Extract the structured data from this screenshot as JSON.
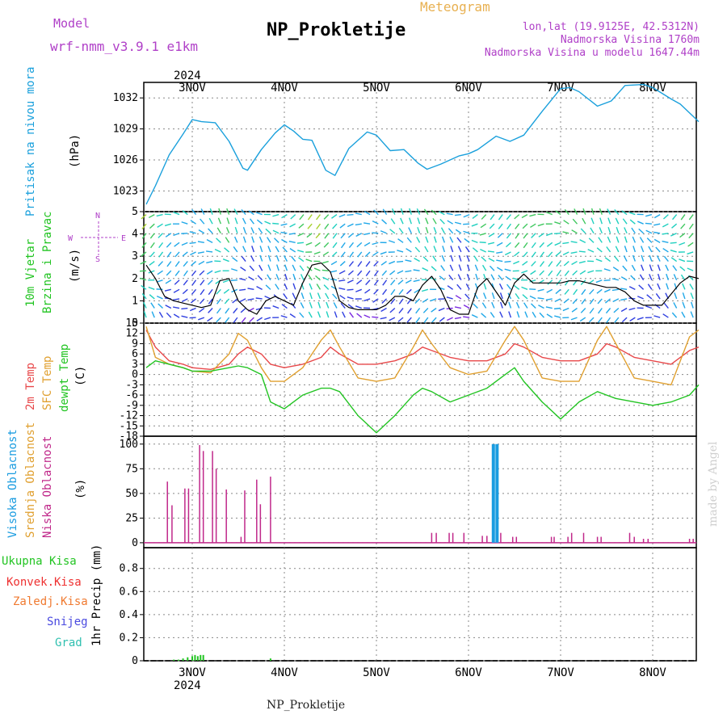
{
  "header": {
    "model_label": "Model",
    "model_name": "wrf-nmm_v3.9.1 e1km",
    "site_title": "NP_Prokletije",
    "meteogram_label": "Meteogram",
    "lonlat": "lon,lat (19.9125E, 42.5312N)",
    "elevation": "Nadmorska Visina 1760m",
    "model_elevation": "Nadmorska Visina u modelu 1647.44m",
    "watermark": "made by Angel",
    "footer": "NP_Prokletije"
  },
  "colors": {
    "pressure": "#1aa0dc",
    "temp2m": "#e8484a",
    "sfc_temp": "#e0a030",
    "dewpt": "#22c422",
    "wind_speed": "#000000",
    "wind_max": "#ee3030",
    "low_cloud": "#c0288a",
    "high_cloud": "#1a9ce0",
    "precip_total": "#22c422",
    "title_purple": "#b040c8",
    "title_gold": "#e8b050"
  },
  "axes": {
    "year_top": "2024",
    "year_bottom": "2024",
    "days": [
      "3NOV",
      "4NOV",
      "5NOV",
      "6NOV",
      "7NOV",
      "8NOV"
    ]
  },
  "panels": {
    "pressure": {
      "label": "Pritisak na nivou mora",
      "unit": "(hPa)",
      "ticks": [
        "1023",
        "1026",
        "1029",
        "1032"
      ]
    },
    "wind": {
      "label1": "10m Vjetar",
      "label2": "Brzina i Pravac",
      "unit": "(m/s)",
      "ticks": [
        "0",
        "1",
        "2",
        "3",
        "4",
        "5"
      ],
      "compass": [
        "N",
        "S",
        "E",
        "W"
      ]
    },
    "temp": {
      "label1": "2m Temp",
      "label2": "SFC Temp",
      "label3": "dewpt Temp",
      "unit": "(C)",
      "ticks": [
        "-18",
        "-15",
        "-12",
        "-9",
        "-6",
        "-3",
        "0",
        "3",
        "6",
        "9",
        "12",
        "15"
      ]
    },
    "cloud": {
      "label1": "Visoka Oblacnost",
      "label2": "Srednja Oblacnost",
      "label3": "Niska Oblacnost",
      "unit": "(%)",
      "ticks": [
        "0",
        "25",
        "50",
        "75",
        "100"
      ]
    },
    "precip": {
      "label1": "Ukupna Kisa",
      "label2": "Konvek.Kisa",
      "label3": "Zaledj.Kisa",
      "label4": "Snijeg",
      "label5": "Grad",
      "unit": "1hr Precip (mm)",
      "ticks": [
        "0",
        "0.2",
        "0.4",
        "0.6",
        "0.8"
      ]
    }
  },
  "chart_data": [
    {
      "type": "line",
      "name": "pressure",
      "ylim": [
        1021,
        1033.5
      ],
      "x_days": [
        2.5,
        2.6,
        2.75,
        2.9,
        3.0,
        3.1,
        3.25,
        3.4,
        3.55,
        3.6,
        3.75,
        3.9,
        4.0,
        4.1,
        4.2,
        4.3,
        4.45,
        4.55,
        4.7,
        4.9,
        5.0,
        5.15,
        5.3,
        5.45,
        5.55,
        5.7,
        5.9,
        6.0,
        6.1,
        6.3,
        6.45,
        6.6,
        6.8,
        6.9,
        7.0,
        7.1,
        7.2,
        7.4,
        7.55,
        7.7,
        7.9,
        8.0,
        8.2,
        8.3,
        8.5
      ],
      "values": [
        1021.7,
        1023.5,
        1026.5,
        1028.5,
        1029.9,
        1029.7,
        1029.6,
        1027.8,
        1025.2,
        1025.0,
        1027.0,
        1028.6,
        1029.4,
        1028.8,
        1028.0,
        1027.9,
        1025.0,
        1024.5,
        1027.1,
        1028.7,
        1028.4,
        1026.9,
        1027.0,
        1025.7,
        1025.1,
        1025.6,
        1026.4,
        1026.6,
        1027.0,
        1028.3,
        1027.8,
        1028.4,
        1030.7,
        1031.8,
        1032.9,
        1033.0,
        1032.6,
        1031.2,
        1031.7,
        1033.2,
        1033.3,
        1033.0,
        1031.9,
        1031.4,
        1029.7
      ],
      "series_name": ""
    },
    {
      "type": "line",
      "name": "wind",
      "ylim": [
        0,
        5
      ],
      "x_days": [
        2.5,
        2.6,
        2.7,
        2.8,
        2.9,
        3.0,
        3.1,
        3.2,
        3.3,
        3.4,
        3.5,
        3.6,
        3.7,
        3.8,
        3.9,
        4.0,
        4.1,
        4.2,
        4.3,
        4.4,
        4.5,
        4.6,
        4.7,
        4.8,
        4.9,
        5.0,
        5.1,
        5.2,
        5.3,
        5.4,
        5.5,
        5.6,
        5.7,
        5.8,
        5.9,
        6.0,
        6.1,
        6.2,
        6.3,
        6.4,
        6.5,
        6.6,
        6.7,
        6.8,
        6.9,
        7.0,
        7.1,
        7.2,
        7.3,
        7.4,
        7.5,
        7.6,
        7.7,
        7.8,
        7.9,
        8.0,
        8.1,
        8.2,
        8.3,
        8.4,
        8.5
      ],
      "speed": [
        2.6,
        2.0,
        1.2,
        1.0,
        0.9,
        0.8,
        0.7,
        0.8,
        1.9,
        2.0,
        1.0,
        0.6,
        0.4,
        1.0,
        1.2,
        1.0,
        0.8,
        1.8,
        2.6,
        2.7,
        2.3,
        1.0,
        0.7,
        0.6,
        0.6,
        0.6,
        0.8,
        1.2,
        1.2,
        1.0,
        1.7,
        2.1,
        1.5,
        0.6,
        0.4,
        0.4,
        1.6,
        2.0,
        1.4,
        0.8,
        1.8,
        2.2,
        1.8,
        1.8,
        1.8,
        1.8,
        1.9,
        1.9,
        1.8,
        1.7,
        1.6,
        1.6,
        1.4,
        1.0,
        0.8,
        0.8,
        0.8,
        1.3,
        1.8,
        2.1,
        2.0
      ],
      "series_name": ""
    },
    {
      "type": "line",
      "name": "temperature",
      "ylim": [
        -18,
        15
      ],
      "x_days": [
        2.5,
        2.6,
        2.75,
        2.9,
        3.0,
        3.2,
        3.4,
        3.5,
        3.6,
        3.75,
        3.85,
        4.0,
        4.2,
        4.4,
        4.5,
        4.6,
        4.8,
        5.0,
        5.2,
        5.4,
        5.5,
        5.6,
        5.8,
        6.0,
        6.2,
        6.4,
        6.5,
        6.6,
        6.8,
        7.0,
        7.2,
        7.4,
        7.5,
        7.6,
        7.8,
        8.0,
        8.2,
        8.4,
        8.5
      ],
      "series": [
        {
          "id": "temp2m",
          "values": [
            13,
            8,
            4,
            3,
            2,
            1.5,
            3,
            6,
            8,
            6,
            3,
            2,
            3,
            5,
            8,
            6,
            3,
            3,
            4,
            6,
            8,
            7,
            5,
            4,
            4,
            6,
            9,
            8,
            5,
            4,
            4,
            6,
            9,
            8,
            5,
            4,
            3,
            7,
            8
          ]
        },
        {
          "id": "sfc_temp",
          "values": [
            14,
            5,
            3,
            2,
            1,
            0.5,
            6,
            12,
            10,
            2,
            -2,
            -2,
            2,
            10,
            13,
            8,
            -1,
            -2,
            -1,
            8,
            13,
            9,
            2,
            0,
            1,
            10,
            14,
            10,
            -1,
            -2,
            -2,
            10,
            14,
            9,
            -1,
            -2,
            -3,
            11,
            13
          ]
        },
        {
          "id": "dewpt",
          "values": [
            2,
            4,
            3,
            2,
            1,
            1,
            2,
            2.5,
            2,
            0,
            -8,
            -10,
            -6,
            -4,
            -4,
            -5,
            -12,
            -17,
            -12,
            -6,
            -4,
            -5,
            -8,
            -6,
            -4,
            0,
            2,
            -2,
            -8,
            -13,
            -8,
            -5,
            -6,
            -7,
            -8,
            -9,
            -8,
            -6,
            -3
          ]
        }
      ]
    },
    {
      "type": "bar",
      "name": "cloud",
      "ylim": [
        0,
        100
      ],
      "low_cloud_x": [
        2.73,
        2.78,
        2.92,
        2.96,
        3.08,
        3.12,
        3.22,
        3.26,
        3.37,
        3.53,
        3.57,
        3.7,
        3.74,
        3.85,
        5.6,
        5.65,
        5.79,
        5.83,
        5.95,
        6.15,
        6.2,
        6.35,
        6.48,
        6.52,
        6.9,
        6.93,
        7.08,
        7.12,
        7.25,
        7.4,
        7.44,
        7.75,
        7.8,
        7.9,
        7.95,
        8.4,
        8.44
      ],
      "low_cloud_values": [
        62,
        38,
        55,
        55,
        99,
        93,
        93,
        75,
        54,
        6,
        53,
        64,
        39,
        67,
        10,
        10,
        10,
        10,
        10,
        7,
        7,
        10,
        6,
        6,
        6,
        6,
        6,
        10,
        10,
        6,
        6,
        10,
        6,
        4,
        4,
        4,
        4
      ],
      "high_cloud_x": [
        6.27,
        6.31
      ],
      "high_cloud_values": [
        100,
        100
      ]
    },
    {
      "type": "bar",
      "name": "precipitation",
      "ylim": [
        0,
        0.9
      ],
      "x_days": [
        2.8,
        2.85,
        2.9,
        2.95,
        3.0,
        3.03,
        3.06,
        3.09,
        3.12,
        3.85
      ],
      "total": [
        0.01,
        0.01,
        0.02,
        0.03,
        0.04,
        0.05,
        0.04,
        0.05,
        0.05,
        0.02
      ]
    }
  ]
}
